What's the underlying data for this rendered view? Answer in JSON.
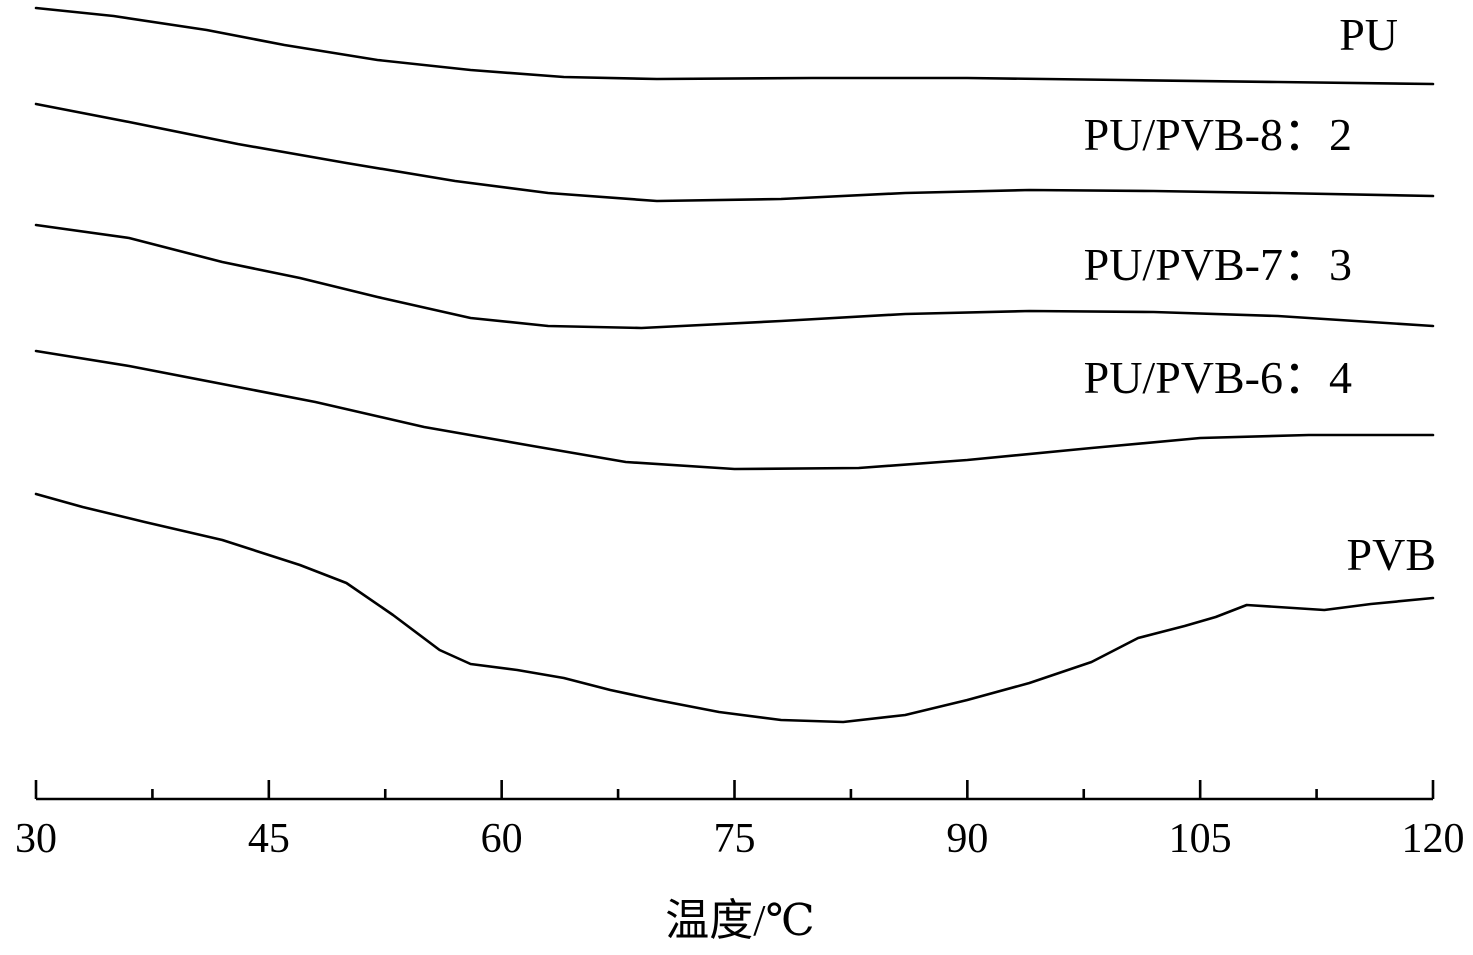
{
  "chart_data": {
    "type": "line",
    "title": "",
    "xlabel": "温度/℃",
    "ylabel": "",
    "xlim": [
      30,
      120
    ],
    "x_ticks": [
      "30",
      "45",
      "60",
      "75",
      "90",
      "105",
      "120"
    ],
    "grid": false,
    "legend": "inline labels at right end of each curve",
    "line_color": "#000000",
    "series": [
      {
        "name": "PU",
        "points": [
          [
            30,
            8
          ],
          [
            35,
            16
          ],
          [
            41,
            30
          ],
          [
            46,
            45
          ],
          [
            52,
            60
          ],
          [
            58,
            70
          ],
          [
            64,
            77
          ],
          [
            70,
            79
          ],
          [
            80,
            78
          ],
          [
            90,
            78
          ],
          [
            100,
            80
          ],
          [
            110,
            82
          ],
          [
            120,
            84
          ]
        ]
      },
      {
        "name": "PU/PVB-8：2",
        "points": [
          [
            30,
            104
          ],
          [
            36,
            122
          ],
          [
            43,
            144
          ],
          [
            50,
            163
          ],
          [
            57,
            181
          ],
          [
            63,
            193
          ],
          [
            70,
            201
          ],
          [
            78,
            199
          ],
          [
            86,
            193
          ],
          [
            94,
            190
          ],
          [
            102,
            191
          ],
          [
            110,
            193
          ],
          [
            120,
            196
          ]
        ]
      },
      {
        "name": "PU/PVB-7：3",
        "points": [
          [
            30,
            225
          ],
          [
            36,
            238
          ],
          [
            42,
            262
          ],
          [
            47,
            278
          ],
          [
            52,
            297
          ],
          [
            58,
            318
          ],
          [
            63,
            326
          ],
          [
            69,
            328
          ],
          [
            78,
            321
          ],
          [
            86,
            314
          ],
          [
            94,
            311
          ],
          [
            102,
            312
          ],
          [
            110,
            316
          ],
          [
            120,
            326
          ]
        ]
      },
      {
        "name": "PU/PVB-6：4",
        "points": [
          [
            30,
            351
          ],
          [
            36,
            366
          ],
          [
            42,
            384
          ],
          [
            48,
            402
          ],
          [
            55,
            427
          ],
          [
            62,
            446
          ],
          [
            68,
            462
          ],
          [
            75,
            469
          ],
          [
            83,
            468
          ],
          [
            90,
            460
          ],
          [
            98,
            448
          ],
          [
            105,
            438
          ],
          [
            112,
            435
          ],
          [
            120,
            435
          ]
        ]
      },
      {
        "name": "PVB",
        "points": [
          [
            30,
            494
          ],
          [
            33,
            507
          ],
          [
            37,
            522
          ],
          [
            42,
            540
          ],
          [
            47,
            565
          ],
          [
            50,
            583
          ],
          [
            53,
            615
          ],
          [
            56,
            650
          ],
          [
            58,
            664
          ],
          [
            61,
            670
          ],
          [
            64,
            678
          ],
          [
            67,
            690
          ],
          [
            70,
            700
          ],
          [
            74,
            712
          ],
          [
            78,
            720
          ],
          [
            82,
            722
          ],
          [
            86,
            715
          ],
          [
            90,
            700
          ],
          [
            94,
            683
          ],
          [
            98,
            662
          ],
          [
            101,
            638
          ],
          [
            104,
            626
          ],
          [
            106,
            617
          ],
          [
            108,
            605
          ],
          [
            110,
            607
          ],
          [
            113,
            610
          ],
          [
            116,
            604
          ],
          [
            120,
            598
          ]
        ]
      }
    ]
  }
}
